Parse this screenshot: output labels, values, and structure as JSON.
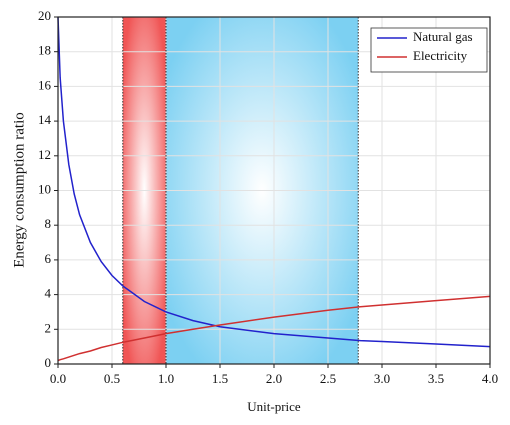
{
  "chart_data": {
    "type": "line",
    "xlabel": "Unit-price",
    "ylabel": "Energy consumption ratio",
    "x": [
      0,
      0.02,
      0.05,
      0.1,
      0.15,
      0.2,
      0.3,
      0.4,
      0.5,
      0.6,
      0.8,
      1.0,
      1.25,
      1.5,
      2.0,
      2.5,
      2.8,
      3.0,
      3.5,
      4.0
    ],
    "series": [
      {
        "name": "Natural gas",
        "color": "#2222cc",
        "values": [
          20,
          16.5,
          14,
          11.5,
          9.8,
          8.6,
          7.0,
          5.9,
          5.1,
          4.5,
          3.6,
          3.0,
          2.5,
          2.15,
          1.75,
          1.5,
          1.35,
          1.3,
          1.15,
          1.0
        ]
      },
      {
        "name": "Electricity",
        "color": "#d03030",
        "values": [
          0.2,
          0.25,
          0.3,
          0.4,
          0.5,
          0.6,
          0.75,
          0.95,
          1.1,
          1.25,
          1.5,
          1.75,
          2.0,
          2.25,
          2.7,
          3.1,
          3.3,
          3.4,
          3.65,
          3.9
        ]
      }
    ],
    "shaded_regions": [
      {
        "x": [
          0.6,
          1.0
        ],
        "color": "#f05555"
      },
      {
        "x": [
          1.0,
          2.78
        ],
        "color": "#7cd0f2"
      }
    ],
    "xlim": [
      0,
      4
    ],
    "ylim": [
      0,
      20
    ],
    "xticks": [
      {
        "value": 0,
        "label": "0.0"
      },
      {
        "value": 0.5,
        "label": "0.5"
      },
      {
        "value": 1,
        "label": "1.0"
      },
      {
        "value": 1.5,
        "label": "1.5"
      },
      {
        "value": 2,
        "label": "2.0"
      },
      {
        "value": 2.5,
        "label": "2.5"
      },
      {
        "value": 3,
        "label": "3.0"
      },
      {
        "value": 3.5,
        "label": "3.5"
      },
      {
        "value": 4,
        "label": "4.0"
      }
    ],
    "yticks": [
      0,
      2,
      4,
      6,
      8,
      10,
      12,
      14,
      16,
      18,
      20
    ],
    "grid": true,
    "legend": "upper-right"
  }
}
